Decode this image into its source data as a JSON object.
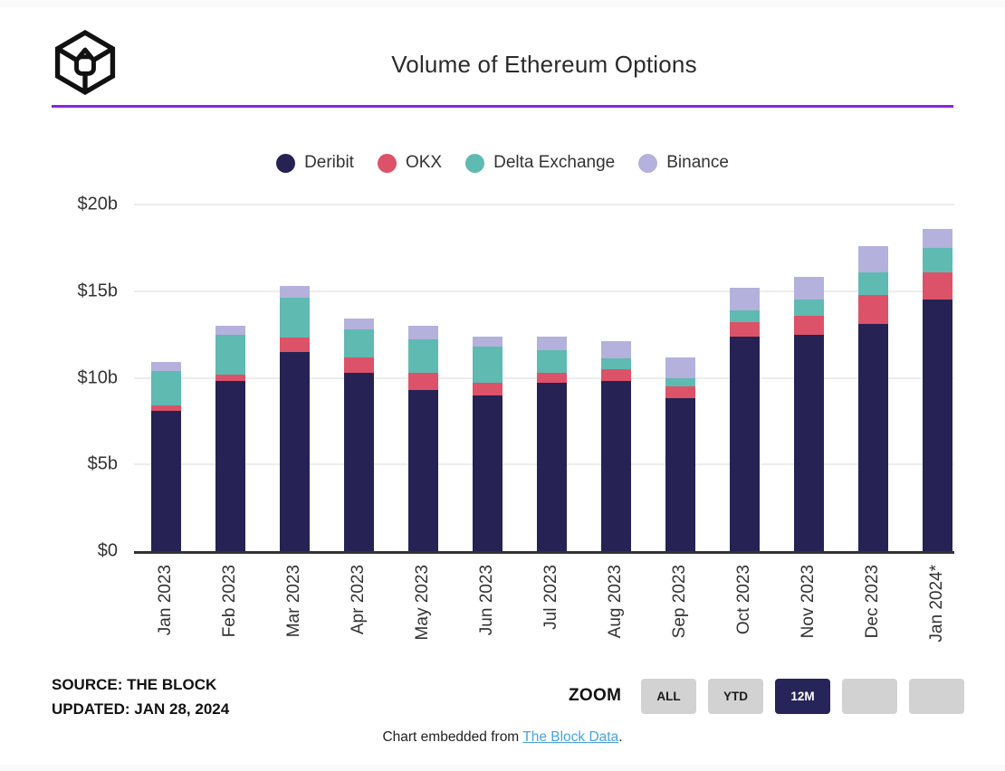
{
  "header": {
    "title": "Volume of Ethereum Options",
    "logo_icon": "the-block-cube-logo"
  },
  "colors": {
    "accent_divider": "#8b24e4",
    "axis_line": "#333333",
    "gridline": "#ededed",
    "button_gray": "#d2d2d2",
    "button_active": "#272459",
    "link_blue": "#4aa3dd"
  },
  "chart_data": {
    "type": "bar",
    "stacked": true,
    "title": "Volume of Ethereum Options",
    "unit": "USD billions",
    "categories": [
      "Jan 2023",
      "Feb 2023",
      "Mar 2023",
      "Apr 2023",
      "May 2023",
      "Jun 2023",
      "Jul 2023",
      "Aug 2023",
      "Sep 2023",
      "Oct 2023",
      "Nov 2023",
      "Dec 2023",
      "Jan 2024*"
    ],
    "series": [
      {
        "name": "Deribit",
        "color": "#262254",
        "values": [
          8.1,
          9.8,
          11.5,
          10.3,
          9.3,
          9.0,
          9.7,
          9.8,
          8.8,
          12.4,
          12.5,
          13.1,
          14.5
        ]
      },
      {
        "name": "OKX",
        "color": "#dc5268",
        "values": [
          0.3,
          0.4,
          0.8,
          0.9,
          1.0,
          0.7,
          0.6,
          0.7,
          0.7,
          0.8,
          1.1,
          1.7,
          1.6
        ]
      },
      {
        "name": "Delta Exchange",
        "color": "#5fbab1",
        "values": [
          2.0,
          2.3,
          2.3,
          1.6,
          1.9,
          2.1,
          1.3,
          0.6,
          0.5,
          0.7,
          0.9,
          1.3,
          1.4
        ]
      },
      {
        "name": "Binance",
        "color": "#b4b1dd",
        "values": [
          0.5,
          0.5,
          0.7,
          0.6,
          0.8,
          0.6,
          0.8,
          1.0,
          1.2,
          1.3,
          1.3,
          1.5,
          1.1
        ]
      }
    ],
    "ylim": [
      0,
      20
    ],
    "yticks": [
      {
        "value": 20,
        "label": "$20b"
      },
      {
        "value": 15,
        "label": "$15b"
      },
      {
        "value": 10,
        "label": "$10b"
      },
      {
        "value": 5,
        "label": "$5b"
      },
      {
        "value": 0,
        "label": "$0"
      }
    ],
    "grid": "horizontal",
    "legend_position": "top"
  },
  "footer": {
    "source": "SOURCE: THE BLOCK",
    "updated": "UPDATED: JAN 28, 2024",
    "zoom_label": "ZOOM",
    "zoom_buttons": [
      {
        "label": "ALL",
        "active": false
      },
      {
        "label": "YTD",
        "active": false
      },
      {
        "label": "12M",
        "active": true
      },
      {
        "label": "",
        "active": false
      },
      {
        "label": "",
        "active": false
      }
    ],
    "embed_prefix": "Chart embedded from ",
    "embed_link": "The Block Data",
    "embed_suffix": "."
  }
}
